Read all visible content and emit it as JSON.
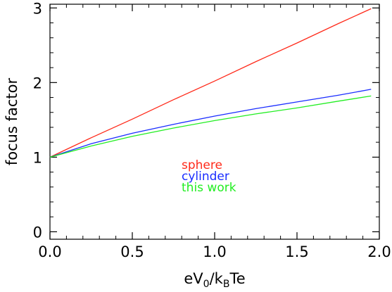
{
  "chart_data": {
    "type": "line",
    "xlabel": "eV",
    "xlabel_sub_0": "0",
    "xlabel_mid": "/k",
    "xlabel_sub_B": "B",
    "xlabel_end": "Te",
    "ylabel": "focus factor",
    "xlim": [
      0.0,
      2.0
    ],
    "ylim": [
      -0.1,
      3.05
    ],
    "xticks": [
      0.0,
      0.5,
      1.0,
      1.5,
      2.0
    ],
    "xtick_labels": [
      "0.0",
      "0.5",
      "1.0",
      "1.5",
      "2.0"
    ],
    "yticks": [
      0,
      1,
      2,
      3
    ],
    "ytick_labels": [
      "0",
      "1",
      "2",
      "3"
    ],
    "grid": false,
    "series": [
      {
        "name": "sphere",
        "color": "#ff2a1a",
        "x": [
          0.0,
          0.25,
          0.5,
          0.75,
          1.0,
          1.25,
          1.5,
          1.75,
          1.95
        ],
        "y": [
          1.0,
          1.26,
          1.51,
          1.77,
          2.02,
          2.28,
          2.53,
          2.79,
          2.99
        ]
      },
      {
        "name": "cylinder",
        "color": "#1a2dff",
        "x": [
          0.0,
          0.25,
          0.5,
          0.75,
          1.0,
          1.25,
          1.5,
          1.75,
          1.95
        ],
        "y": [
          1.0,
          1.18,
          1.32,
          1.44,
          1.55,
          1.65,
          1.74,
          1.83,
          1.91
        ]
      },
      {
        "name": "this work",
        "color": "#22ee22",
        "x": [
          0.0,
          0.25,
          0.5,
          0.75,
          1.0,
          1.25,
          1.5,
          1.75,
          1.95
        ],
        "y": [
          1.0,
          1.15,
          1.28,
          1.39,
          1.49,
          1.58,
          1.66,
          1.75,
          1.82
        ]
      }
    ],
    "legend": {
      "placement": "center",
      "items": [
        {
          "label": "sphere",
          "color": "#ff2a1a"
        },
        {
          "label": "cylinder",
          "color": "#1a2dff"
        },
        {
          "label": "this work",
          "color": "#22ee22"
        }
      ]
    }
  }
}
